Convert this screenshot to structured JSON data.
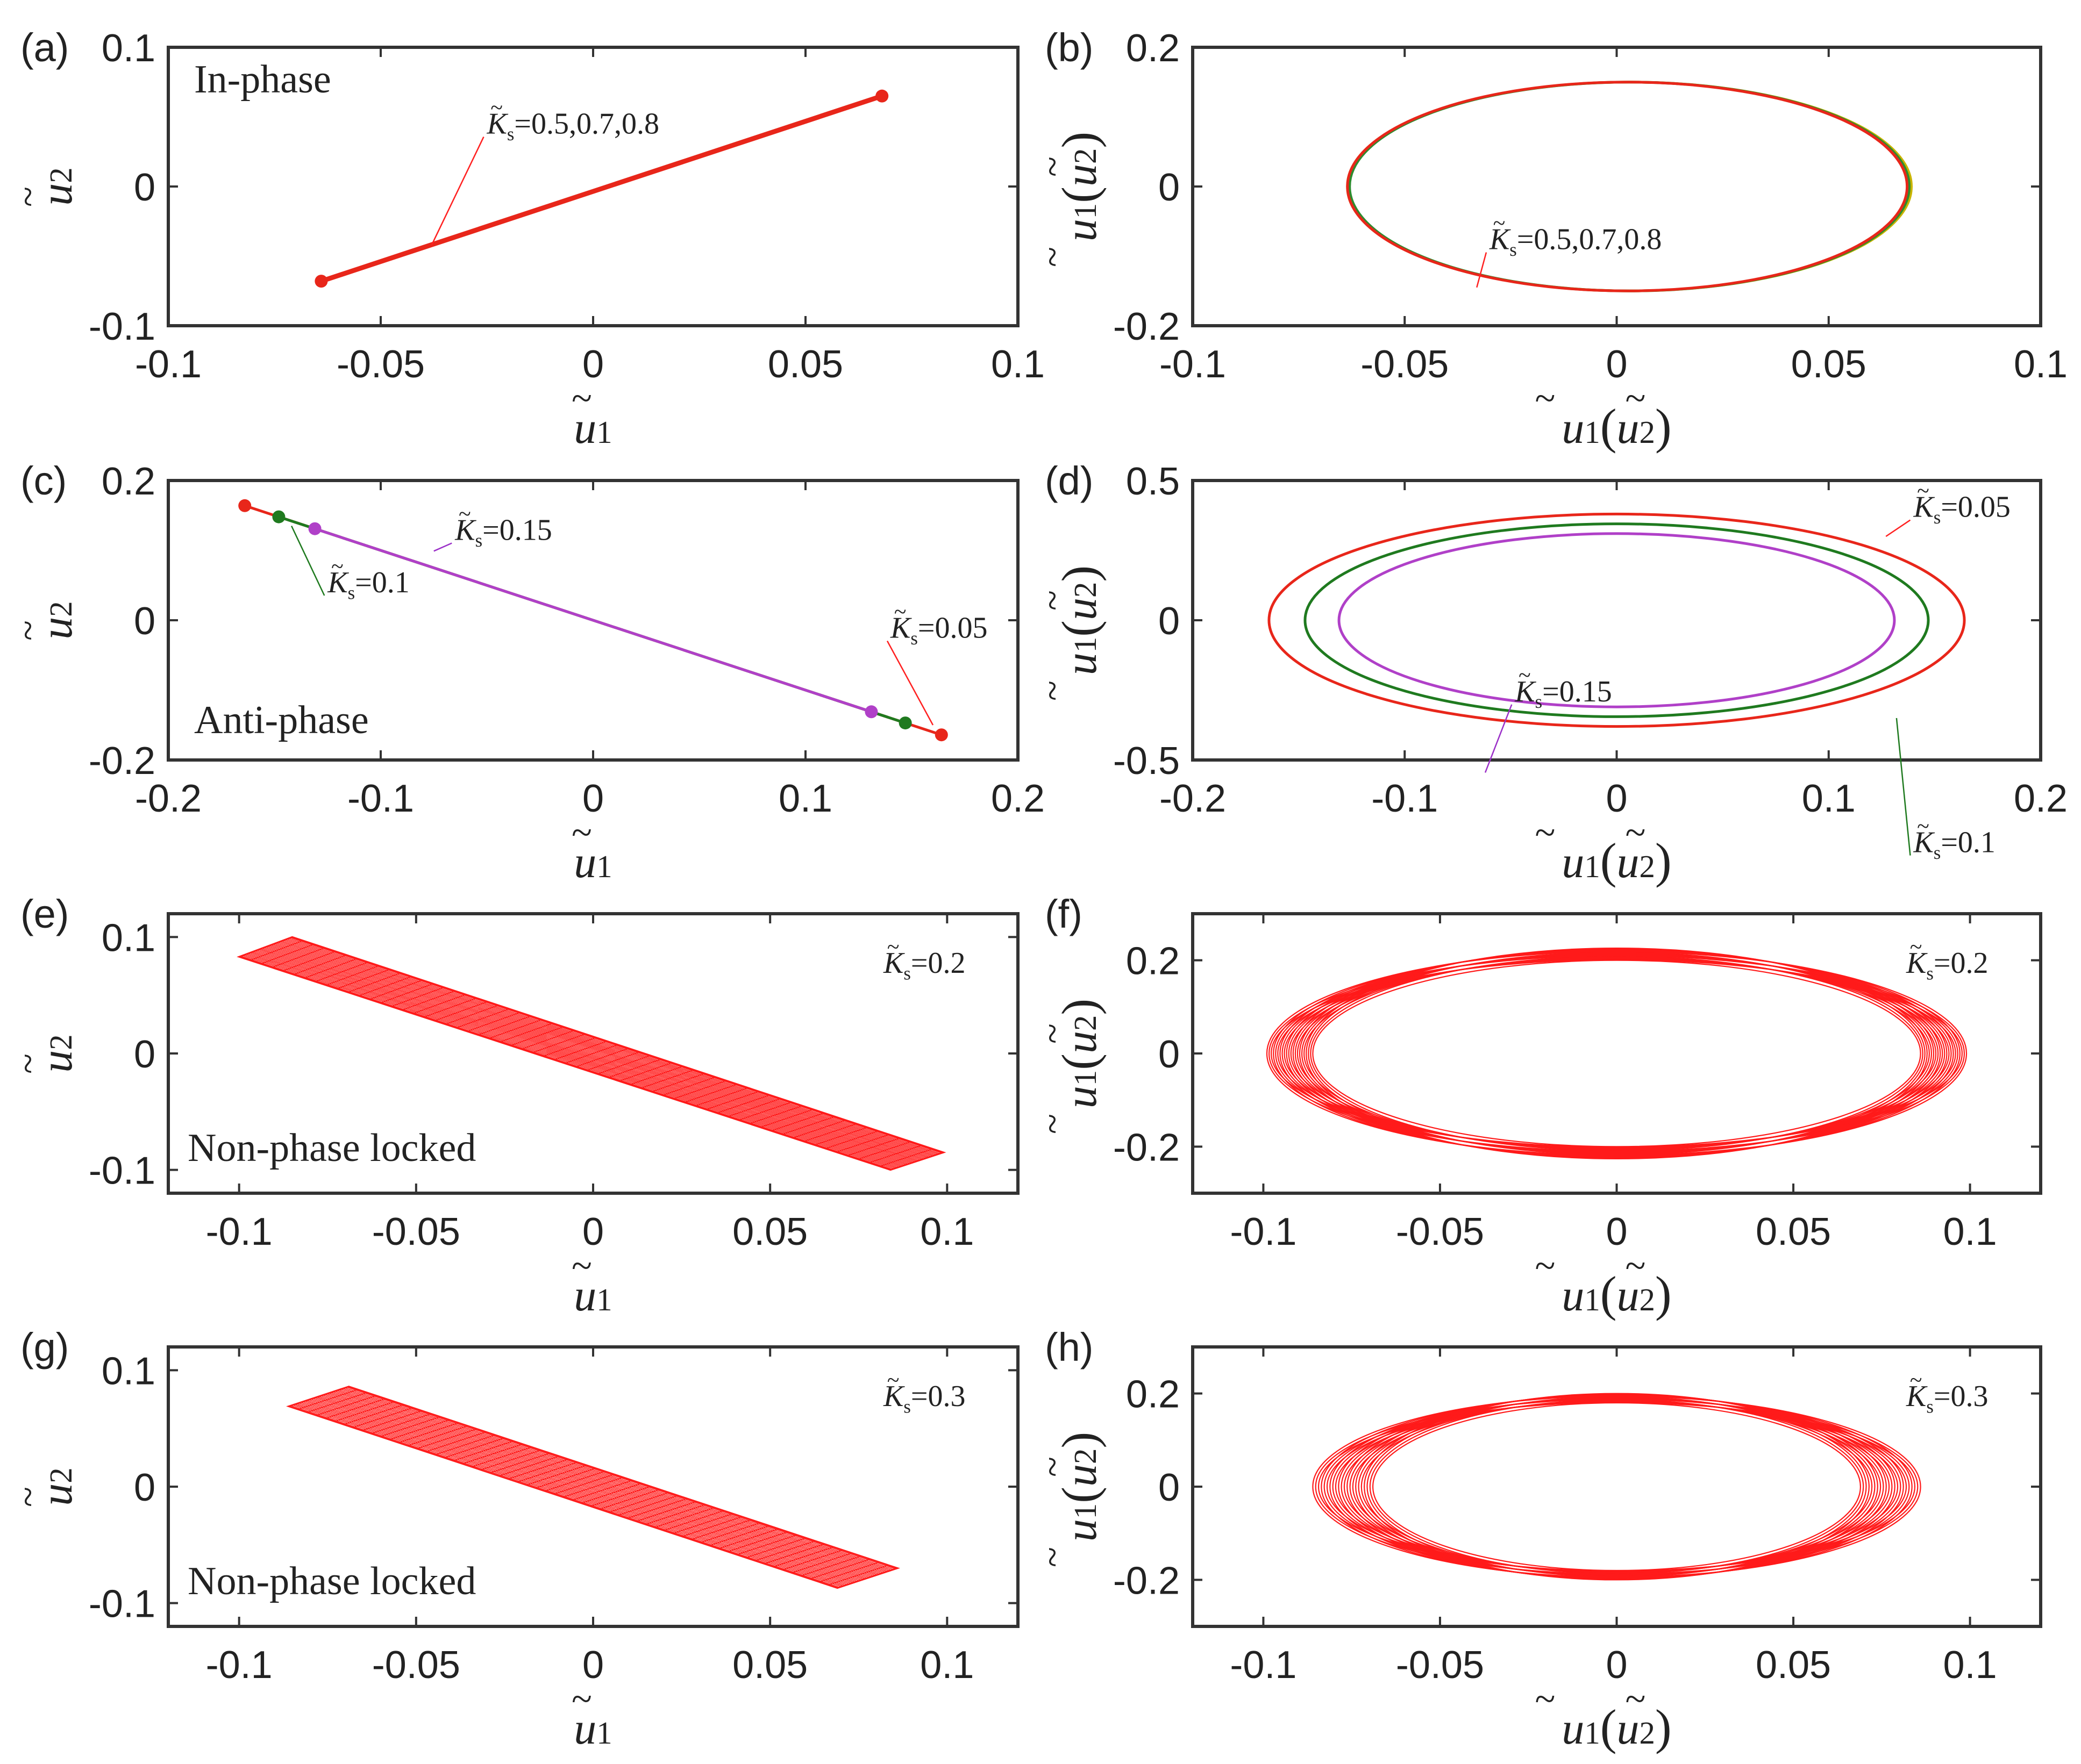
{
  "chart_data": [
    {
      "panel": "(a)",
      "type": "line",
      "xlabel": "ũ1",
      "ylabel": "ũ2",
      "xlim": [
        -0.1,
        0.1
      ],
      "ylim": [
        -0.1,
        0.1
      ],
      "xticks": [
        "-0.1",
        "-0.05",
        "0",
        "0.05",
        "0.1"
      ],
      "yticks": [
        "-0.1",
        "0",
        "0.1"
      ],
      "title_note": "In-phase",
      "annotations": [
        {
          "text": "K̃s=0.5,0.7,0.8",
          "tx": -0.025,
          "ty": 0.038,
          "px": -0.038,
          "py": -0.042,
          "color": "#ff2020"
        }
      ],
      "series": [
        {
          "name": "K̃s=0.5,0.7,0.8",
          "color": "#e8261a",
          "kind": "segment",
          "x": [
            -0.064,
            0.068
          ],
          "y": [
            -0.068,
            0.065
          ],
          "endpoints": true
        }
      ]
    },
    {
      "panel": "(b)",
      "type": "line",
      "xlabel": "ũ1(ũ2)",
      "ylabel": "u̇1(u̇2)",
      "xlim": [
        -0.1,
        0.1
      ],
      "ylim": [
        -0.2,
        0.2
      ],
      "xticks": [
        "-0.1",
        "-0.05",
        "0",
        "0.05",
        "0.1"
      ],
      "yticks": [
        "-0.2",
        "0",
        "0.2"
      ],
      "annotations": [
        {
          "text": "K̃s=0.5,0.7,0.8",
          "tx": -0.03,
          "ty": -0.09,
          "px": -0.033,
          "py": -0.145,
          "color": "#ff2020"
        }
      ],
      "series": [
        {
          "name": "K̃s=0.8",
          "color": "#c8b400",
          "kind": "ellipse",
          "cx": 0.003,
          "rx": 0.0665,
          "ry": 0.15
        },
        {
          "name": "K̃s=0.7",
          "color": "#2e8b2e",
          "kind": "ellipse",
          "cx": 0.003,
          "rx": 0.066,
          "ry": 0.15
        },
        {
          "name": "K̃s=0.5",
          "color": "#e8261a",
          "kind": "ellipse",
          "cx": 0.0025,
          "rx": 0.066,
          "ry": 0.15
        }
      ]
    },
    {
      "panel": "(c)",
      "type": "line",
      "xlabel": "ũ1",
      "ylabel": "ũ2",
      "xlim": [
        -0.2,
        0.2
      ],
      "ylim": [
        -0.2,
        0.2
      ],
      "xticks": [
        "-0.2",
        "-0.1",
        "0",
        "0.1",
        "0.2"
      ],
      "yticks": [
        "-0.2",
        "0",
        "0.2"
      ],
      "title_note": "Anti-phase",
      "annotations": [
        {
          "text": "K̃s=0.15",
          "tx": -0.065,
          "ty": 0.115,
          "px": -0.075,
          "py": 0.099,
          "color": "#9b30c8"
        },
        {
          "text": "K̃s=0.1",
          "tx": -0.125,
          "ty": 0.04,
          "px": -0.142,
          "py": 0.135,
          "color": "#1f7a1f"
        },
        {
          "text": "K̃s=0.05",
          "tx": 0.14,
          "ty": -0.025,
          "px": 0.16,
          "py": -0.15,
          "color": "#ff2020"
        }
      ],
      "series": [
        {
          "name": "K̃s=0.05",
          "color": "#e8261a",
          "kind": "segment",
          "x": [
            -0.164,
            0.164
          ],
          "y": [
            0.164,
            -0.164
          ],
          "endpoints": true
        },
        {
          "name": "K̃s=0.1",
          "color": "#1f7a1f",
          "kind": "segment",
          "x": [
            -0.148,
            0.147
          ],
          "y": [
            0.148,
            -0.147
          ],
          "endpoints": true
        },
        {
          "name": "K̃s=0.15",
          "color": "#b040c8",
          "kind": "segment",
          "x": [
            -0.131,
            0.131
          ],
          "y": [
            0.131,
            -0.131
          ],
          "endpoints": true
        }
      ]
    },
    {
      "panel": "(d)",
      "type": "line",
      "xlabel": "ũ1(ũ2)",
      "ylabel": "u̇1(u̇2)",
      "xlim": [
        -0.2,
        0.2
      ],
      "ylim": [
        -0.5,
        0.5
      ],
      "xticks": [
        "-0.2",
        "-0.1",
        "0",
        "0.1",
        "0.2"
      ],
      "yticks": [
        "-0.5",
        "0",
        "0.5"
      ],
      "annotations": [
        {
          "text": "K̃s=0.05",
          "tx": 0.14,
          "ty": 0.37,
          "px": 0.127,
          "py": 0.3,
          "color": "#ff2020"
        },
        {
          "text": "K̃s=0.15",
          "tx": -0.048,
          "ty": -0.29,
          "px": -0.062,
          "py": -0.545,
          "color": "#9b30c8"
        },
        {
          "text": "K̃s=0.1",
          "tx": 0.14,
          "ty": -0.83,
          "px": 0.132,
          "py": -0.35,
          "color": "#1f7a1f"
        }
      ],
      "series": [
        {
          "name": "K̃s=0.05",
          "color": "#e8261a",
          "kind": "ellipse",
          "cx": 0,
          "rx": 0.164,
          "ry": 0.38
        },
        {
          "name": "K̃s=0.1",
          "color": "#1f7a1f",
          "kind": "ellipse",
          "cx": 0,
          "rx": 0.147,
          "ry": 0.345
        },
        {
          "name": "K̃s=0.15",
          "color": "#b040c8",
          "kind": "ellipse",
          "cx": 0,
          "rx": 0.131,
          "ry": 0.31
        }
      ]
    },
    {
      "panel": "(e)",
      "type": "line",
      "xlabel": "ũ1",
      "ylabel": "ũ2",
      "xlim": [
        -0.12,
        0.12
      ],
      "ylim": [
        -0.12,
        0.12
      ],
      "xticks": [
        "-0.1",
        "-0.05",
        "0",
        "0.05",
        "0.1"
      ],
      "yticks": [
        "-0.1",
        "0",
        "0.1"
      ],
      "title_note": "Non-phase locked",
      "corner_label": "K̃s=0.2",
      "series": [
        {
          "name": "K̃s=0.2",
          "color": "#ff1a1a",
          "kind": "band",
          "corners": [
            [
              -0.1,
              0.083
            ],
            [
              -0.085,
              0.1
            ],
            [
              0.099,
              -0.085
            ],
            [
              0.084,
              -0.1
            ]
          ],
          "count": 30
        }
      ]
    },
    {
      "panel": "(f)",
      "type": "line",
      "xlabel": "ũ1(ũ2)",
      "ylabel": "u̇1(u̇2)",
      "xlim": [
        -0.12,
        0.12
      ],
      "ylim": [
        -0.3,
        0.3
      ],
      "xticks": [
        "-0.1",
        "-0.05",
        "0",
        "0.05",
        "0.1"
      ],
      "yticks": [
        "-0.2",
        "0",
        "0.2"
      ],
      "corner_label": "K̃s=0.2",
      "series": [
        {
          "name": "K̃s=0.2",
          "color": "#ff1a1a",
          "kind": "ellipse_family",
          "cx": 0,
          "rx_min": 0.086,
          "rx_max": 0.099,
          "ry_min": 0.2,
          "ry_max": 0.226,
          "count": 22
        }
      ]
    },
    {
      "panel": "(g)",
      "type": "line",
      "xlabel": "ũ1",
      "ylabel": "ũ2",
      "xlim": [
        -0.12,
        0.12
      ],
      "ylim": [
        -0.12,
        0.12
      ],
      "xticks": [
        "-0.1",
        "-0.05",
        "0",
        "0.05",
        "0.1"
      ],
      "yticks": [
        "-0.1",
        "0",
        "0.1"
      ],
      "title_note": "Non-phase locked",
      "corner_label": "K̃s=0.3",
      "series": [
        {
          "name": "K̃s=0.3",
          "color": "#ff1a1a",
          "kind": "band",
          "corners": [
            [
              -0.086,
              0.069
            ],
            [
              -0.069,
              0.086
            ],
            [
              0.086,
              -0.07
            ],
            [
              0.069,
              -0.087
            ]
          ],
          "count": 30
        }
      ]
    },
    {
      "panel": "(h)",
      "type": "line",
      "xlabel": "ũ1(ũ2)",
      "ylabel": "u̇1(u̇2)",
      "xlim": [
        -0.12,
        0.12
      ],
      "ylim": [
        -0.3,
        0.3
      ],
      "xticks": [
        "-0.1",
        "-0.05",
        "0",
        "0.05",
        "0.1"
      ],
      "yticks": [
        "-0.2",
        "0",
        "0.2"
      ],
      "corner_label": "K̃s=0.3",
      "series": [
        {
          "name": "K̃s=0.3",
          "color": "#ff1a1a",
          "kind": "ellipse_family",
          "cx": 0,
          "rx_min": 0.069,
          "rx_max": 0.086,
          "ry_min": 0.18,
          "ry_max": 0.2,
          "count": 22
        }
      ]
    }
  ]
}
